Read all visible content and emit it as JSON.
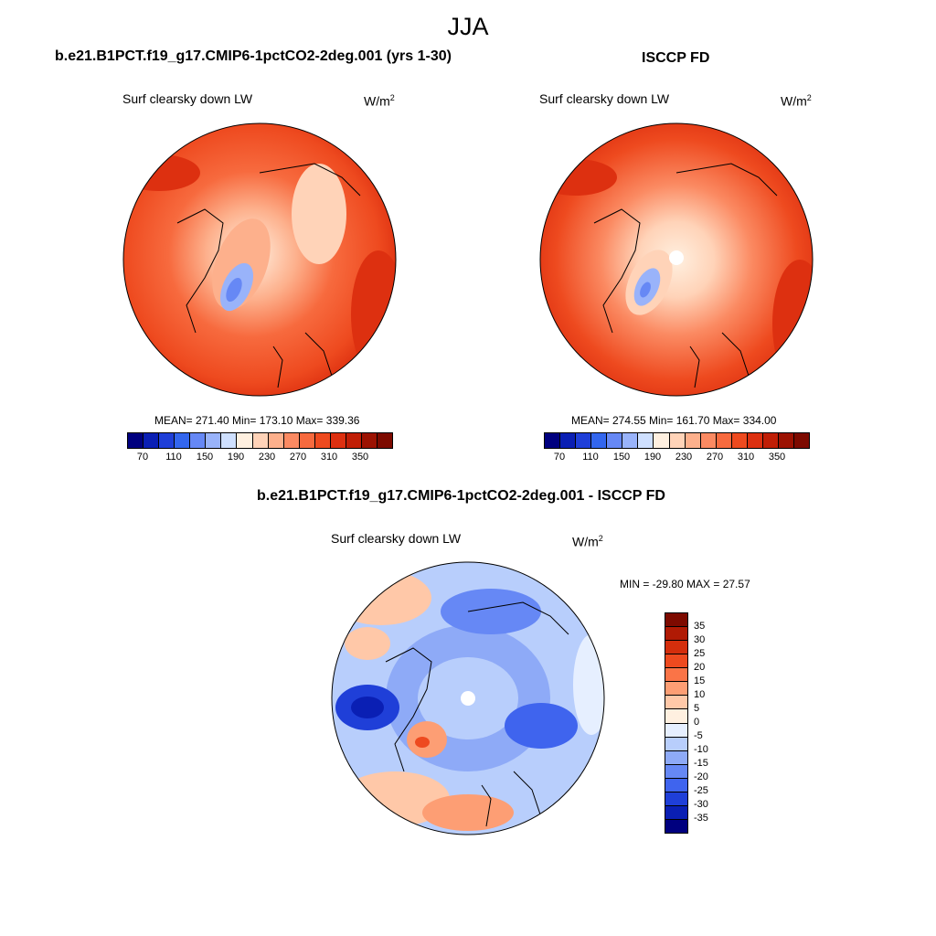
{
  "season": "JJA",
  "panels": [
    {
      "title": "b.e21.B1PCT.f19_g17.CMIP6-1pctCO2-2deg.001 (yrs 1-30)",
      "field": "Surf clearsky down LW",
      "units_base": "W/m",
      "units_exp": "2",
      "stats": "MEAN= 271.40  Min= 173.10  Max= 339.36",
      "mean": 271.4,
      "min": 173.1,
      "max": 339.36
    },
    {
      "title": "ISCCP FD",
      "field": "Surf clearsky down LW",
      "units_base": "W/m",
      "units_exp": "2",
      "stats": "MEAN= 274.55  Min= 161.70  Max= 334.00",
      "mean": 274.55,
      "min": 161.7,
      "max": 334.0
    }
  ],
  "diff": {
    "title": "b.e21.B1PCT.f19_g17.CMIP6-1pctCO2-2deg.001 - ISCCP FD",
    "field": "Surf clearsky down LW",
    "units_base": "W/m",
    "units_exp": "2",
    "stats": "MIN = -29.80 MAX =  27.57",
    "min": -29.8,
    "max": 27.57
  },
  "colorbar_main": {
    "labels": [
      "70",
      "110",
      "150",
      "190",
      "230",
      "270",
      "310",
      "350"
    ],
    "colors": [
      "#00007f",
      "#0a1fb4",
      "#1f3fd8",
      "#3366ee",
      "#6688f5",
      "#99b3fa",
      "#cfe0ff",
      "#fff0e0",
      "#ffd3b8",
      "#fdb08c",
      "#fb8a62",
      "#f76a3e",
      "#ee4a1f",
      "#dd3010",
      "#c01e06",
      "#9c1202",
      "#7d0a00"
    ]
  },
  "colorbar_diff": {
    "labels": [
      "35",
      "30",
      "25",
      "20",
      "15",
      "10",
      "5",
      "0",
      "-5",
      "-10",
      "-15",
      "-20",
      "-25",
      "-30",
      "-35"
    ],
    "colors": [
      "#7d0a00",
      "#b01a04",
      "#d42e0c",
      "#ee4a1f",
      "#fa7447",
      "#fd9e74",
      "#ffc8a8",
      "#fff0e0",
      "#e6efff",
      "#b8cefc",
      "#8eaaf7",
      "#6688f5",
      "#3f64ee",
      "#1f3fd8",
      "#0a1fb4",
      "#00007f"
    ]
  }
}
